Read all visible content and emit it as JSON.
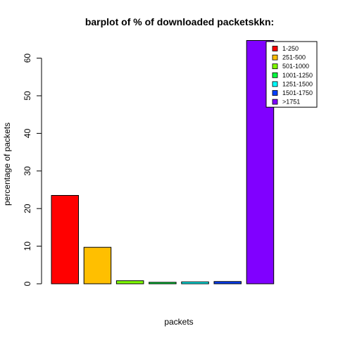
{
  "chart_data": {
    "type": "bar",
    "title": "barplot of % of downloaded packetskkn:",
    "xlabel": "packets",
    "ylabel": "percentage of packets",
    "categories": [
      "1-250",
      "251-500",
      "501-1000",
      "1001-1250",
      "1251-1500",
      "1501-1750",
      ">1751",
      ""
    ],
    "values": [
      23.5,
      9.7,
      0.8,
      0.4,
      0.5,
      0.6,
      64.7,
      0.0
    ],
    "colors": [
      "#FF0000",
      "#FFBF00",
      "#80FF00",
      "#00FF40",
      "#00FFFF",
      "#0040FF",
      "#8000FF",
      "#FF00BF"
    ],
    "yticks": [
      0,
      10,
      20,
      30,
      40,
      50,
      60
    ],
    "ylim": [
      0,
      65
    ],
    "grid": false,
    "legend": {
      "position": "top-right",
      "entries": [
        "1-250",
        "251-500",
        "501-1000",
        "1001-1250",
        "1251-1500",
        "1501-1750",
        ">1751"
      ]
    }
  }
}
